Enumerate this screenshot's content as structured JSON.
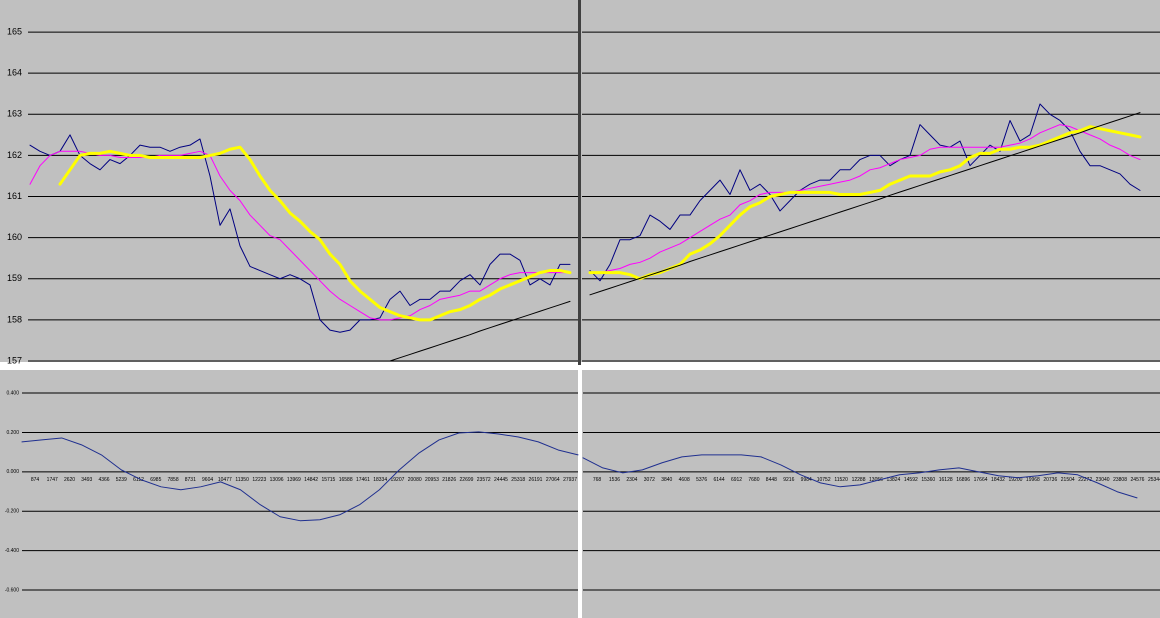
{
  "chart_data": [
    {
      "type": "line",
      "ylim": [
        157,
        165.78
      ],
      "yticks": [
        157,
        158,
        159,
        160,
        161,
        162,
        163,
        164,
        165
      ],
      "grid": true,
      "ytick_labels": true,
      "series": [
        {
          "color": "#000080",
          "width": 1,
          "values": [
            162.25,
            162.1,
            162.0,
            162.1,
            162.5,
            162.0,
            161.8,
            161.65,
            161.9,
            161.8,
            162.0,
            162.25,
            162.2,
            162.2,
            162.1,
            162.2,
            162.25,
            162.4,
            161.5,
            160.3,
            160.7,
            159.8,
            159.3,
            159.2,
            159.1,
            159.0,
            159.1,
            159.0,
            158.85,
            158.0,
            157.75,
            157.7,
            157.75,
            158.0,
            158.0,
            158.05,
            158.5,
            158.7,
            158.35,
            158.5,
            158.5,
            158.7,
            158.7,
            158.95,
            159.1,
            158.85,
            159.35,
            159.6,
            159.6,
            159.45,
            158.85,
            159.0,
            158.85,
            159.35,
            159.35
          ]
        },
        {
          "color": "#ff00ff",
          "width": 1,
          "values": [
            161.3,
            161.75,
            162.0,
            162.1,
            162.1,
            162.1,
            162.05,
            162.0,
            162.0,
            161.95,
            161.95,
            161.95,
            161.95,
            162.0,
            162.0,
            162.0,
            162.05,
            162.1,
            162.0,
            161.5,
            161.15,
            160.9,
            160.55,
            160.3,
            160.05,
            159.95,
            159.7,
            159.45,
            159.2,
            158.95,
            158.7,
            158.5,
            158.35,
            158.2,
            158.05,
            158.0,
            158.0,
            158.05,
            158.1,
            158.25,
            158.35,
            158.5,
            158.55,
            158.6,
            158.7,
            158.7,
            158.85,
            159.0,
            159.1,
            159.15,
            159.15,
            159.15,
            159.15,
            159.15,
            159.15
          ]
        },
        {
          "color": "#ffff00",
          "width": 3,
          "values": [
            null,
            null,
            null,
            161.3,
            161.65,
            162.0,
            162.05,
            162.05,
            162.1,
            162.05,
            162.0,
            162.0,
            161.95,
            161.95,
            161.95,
            161.95,
            161.95,
            161.95,
            162.0,
            162.05,
            162.15,
            162.2,
            161.9,
            161.5,
            161.15,
            160.9,
            160.6,
            160.4,
            160.15,
            159.95,
            159.6,
            159.35,
            158.95,
            158.7,
            158.5,
            158.3,
            158.2,
            158.1,
            158.05,
            158.0,
            158.0,
            158.1,
            158.2,
            158.25,
            158.35,
            158.5,
            158.6,
            158.75,
            158.85,
            158.95,
            159.05,
            159.15,
            159.2,
            159.2,
            159.15
          ]
        },
        {
          "color": "#000000",
          "width": 1,
          "values": [
            null,
            null,
            null,
            null,
            null,
            null,
            null,
            null,
            null,
            null,
            null,
            null,
            null,
            null,
            null,
            null,
            null,
            null,
            null,
            null,
            null,
            null,
            null,
            null,
            null,
            null,
            null,
            null,
            null,
            null,
            null,
            null,
            null,
            null,
            null,
            null,
            157.0,
            157.08,
            157.16,
            157.24,
            157.32,
            157.4,
            157.48,
            157.56,
            157.64,
            157.73,
            157.81,
            157.89,
            157.97,
            158.05,
            158.13,
            158.21,
            158.29,
            158.37,
            158.45
          ]
        }
      ]
    },
    {
      "type": "line",
      "ylim": [
        157,
        165.78
      ],
      "yticks": [
        157,
        158,
        159,
        160,
        161,
        162,
        163,
        164,
        165
      ],
      "grid": true,
      "ytick_labels": false,
      "series": [
        {
          "color": "#000080",
          "width": 1,
          "values": [
            159.2,
            158.95,
            159.35,
            159.95,
            159.95,
            160.05,
            160.55,
            160.4,
            160.2,
            160.55,
            160.55,
            160.9,
            161.15,
            161.4,
            161.05,
            161.65,
            161.15,
            161.3,
            161.05,
            160.65,
            160.9,
            161.15,
            161.3,
            161.4,
            161.4,
            161.65,
            161.65,
            161.9,
            162.0,
            162.0,
            161.75,
            161.9,
            162.0,
            162.75,
            162.5,
            162.25,
            162.2,
            162.35,
            161.75,
            162.0,
            162.25,
            162.1,
            162.85,
            162.35,
            162.5,
            163.25,
            163.0,
            162.85,
            162.6,
            162.1,
            161.75,
            161.75,
            161.65,
            161.55,
            161.3,
            161.15
          ]
        },
        {
          "color": "#ff00ff",
          "width": 1,
          "values": [
            159.15,
            159.15,
            159.2,
            159.25,
            159.35,
            159.4,
            159.5,
            159.65,
            159.75,
            159.85,
            160.0,
            160.15,
            160.3,
            160.45,
            160.55,
            160.8,
            160.9,
            161.05,
            161.1,
            161.1,
            161.1,
            161.15,
            161.2,
            161.25,
            161.3,
            161.35,
            161.4,
            161.5,
            161.65,
            161.7,
            161.8,
            161.9,
            161.95,
            162.0,
            162.15,
            162.2,
            162.2,
            162.2,
            162.2,
            162.2,
            162.2,
            162.2,
            162.25,
            162.3,
            162.4,
            162.55,
            162.65,
            162.75,
            162.7,
            162.6,
            162.5,
            162.4,
            162.25,
            162.15,
            162.0,
            161.9
          ]
        },
        {
          "color": "#ffff00",
          "width": 3,
          "values": [
            159.15,
            159.15,
            159.15,
            159.15,
            159.1,
            159.0,
            159.1,
            159.15,
            159.25,
            159.35,
            159.6,
            159.7,
            159.85,
            160.05,
            160.3,
            160.55,
            160.75,
            160.85,
            161.0,
            161.05,
            161.1,
            161.1,
            161.1,
            161.1,
            161.1,
            161.05,
            161.05,
            161.05,
            161.1,
            161.15,
            161.3,
            161.4,
            161.5,
            161.5,
            161.5,
            161.6,
            161.65,
            161.75,
            161.95,
            162.05,
            162.05,
            162.15,
            162.15,
            162.2,
            162.2,
            162.25,
            162.35,
            162.45,
            162.55,
            162.6,
            162.7,
            162.65,
            162.6,
            162.55,
            162.5,
            162.45
          ]
        },
        {
          "color": "#000000",
          "width": 1,
          "values": [
            158.61,
            158.69,
            158.77,
            158.85,
            158.93,
            159.01,
            159.09,
            159.17,
            159.25,
            159.33,
            159.42,
            159.5,
            159.58,
            159.66,
            159.74,
            159.82,
            159.9,
            159.98,
            160.06,
            160.14,
            160.22,
            160.3,
            160.38,
            160.46,
            160.54,
            160.62,
            160.7,
            160.78,
            160.86,
            160.94,
            161.03,
            161.11,
            161.19,
            161.27,
            161.35,
            161.43,
            161.51,
            161.59,
            161.67,
            161.75,
            161.83,
            161.91,
            161.99,
            162.07,
            162.15,
            162.23,
            162.31,
            162.39,
            162.47,
            162.55,
            162.64,
            162.72,
            162.8,
            162.88,
            162.96,
            163.04
          ]
        }
      ]
    },
    {
      "type": "line",
      "ylim": [
        -0.742,
        0.517
      ],
      "yticks": [
        {
          "value": 0.4,
          "label": "0.400"
        },
        {
          "value": 0.2,
          "label": "0.200"
        },
        {
          "value": 0,
          "label": "0.000"
        },
        {
          "value": -0.2,
          "label": "-0.200"
        },
        {
          "value": -0.4,
          "label": "-0.400"
        },
        {
          "value": -0.6,
          "label": "-0.600"
        }
      ],
      "grid": true,
      "ytick_labels": true,
      "xlim": [
        217,
        28340
      ],
      "xticks": [
        874,
        1747,
        2620,
        3493,
        4366,
        5239,
        6112,
        6985,
        7858,
        8731,
        9604,
        10477,
        11350,
        12223,
        13096,
        13969,
        14842,
        15715,
        16588,
        17461,
        18334,
        19207,
        20080,
        20953,
        21826,
        22699,
        23572,
        24445,
        25318,
        26191,
        27064,
        27937
      ],
      "series": [
        {
          "color": "#1f2f8f",
          "width": 1,
          "values": [
            0.152,
            0.162,
            0.172,
            0.137,
            0.086,
            0.01,
            -0.04,
            -0.076,
            -0.091,
            -0.076,
            -0.051,
            -0.091,
            -0.167,
            -0.228,
            -0.248,
            -0.243,
            -0.218,
            -0.167,
            -0.091,
            0.01,
            0.096,
            0.162,
            0.197,
            0.203,
            0.192,
            0.177,
            0.152,
            0.111,
            0.086
          ]
        }
      ]
    },
    {
      "type": "line",
      "ylim": [
        -0.742,
        0.517
      ],
      "yticks": [
        0.4,
        0.2,
        0,
        -0.2,
        -0.4,
        -0.6
      ],
      "grid": true,
      "ytick_labels": false,
      "xlim": [
        150,
        25568
      ],
      "xticks": [
        768,
        1536,
        2304,
        3072,
        3840,
        4608,
        5376,
        6144,
        6912,
        7680,
        8448,
        9216,
        9984,
        10752,
        11520,
        12288,
        13056,
        13824,
        14592,
        15360,
        16128,
        16896,
        17664,
        18432,
        19200,
        19968,
        20736,
        21504,
        22272,
        23040,
        23808,
        24576,
        25344
      ],
      "series": [
        {
          "color": "#1f2f8f",
          "width": 1,
          "values": [
            0.071,
            0.02,
            -0.005,
            0.01,
            0.046,
            0.076,
            0.086,
            0.086,
            0.086,
            0.076,
            0.035,
            -0.015,
            -0.056,
            -0.076,
            -0.066,
            -0.04,
            -0.015,
            -0.005,
            0.01,
            0.02,
            0,
            -0.02,
            -0.03,
            -0.02,
            -0.005,
            -0.015,
            -0.056,
            -0.101,
            -0.132
          ]
        }
      ]
    }
  ]
}
